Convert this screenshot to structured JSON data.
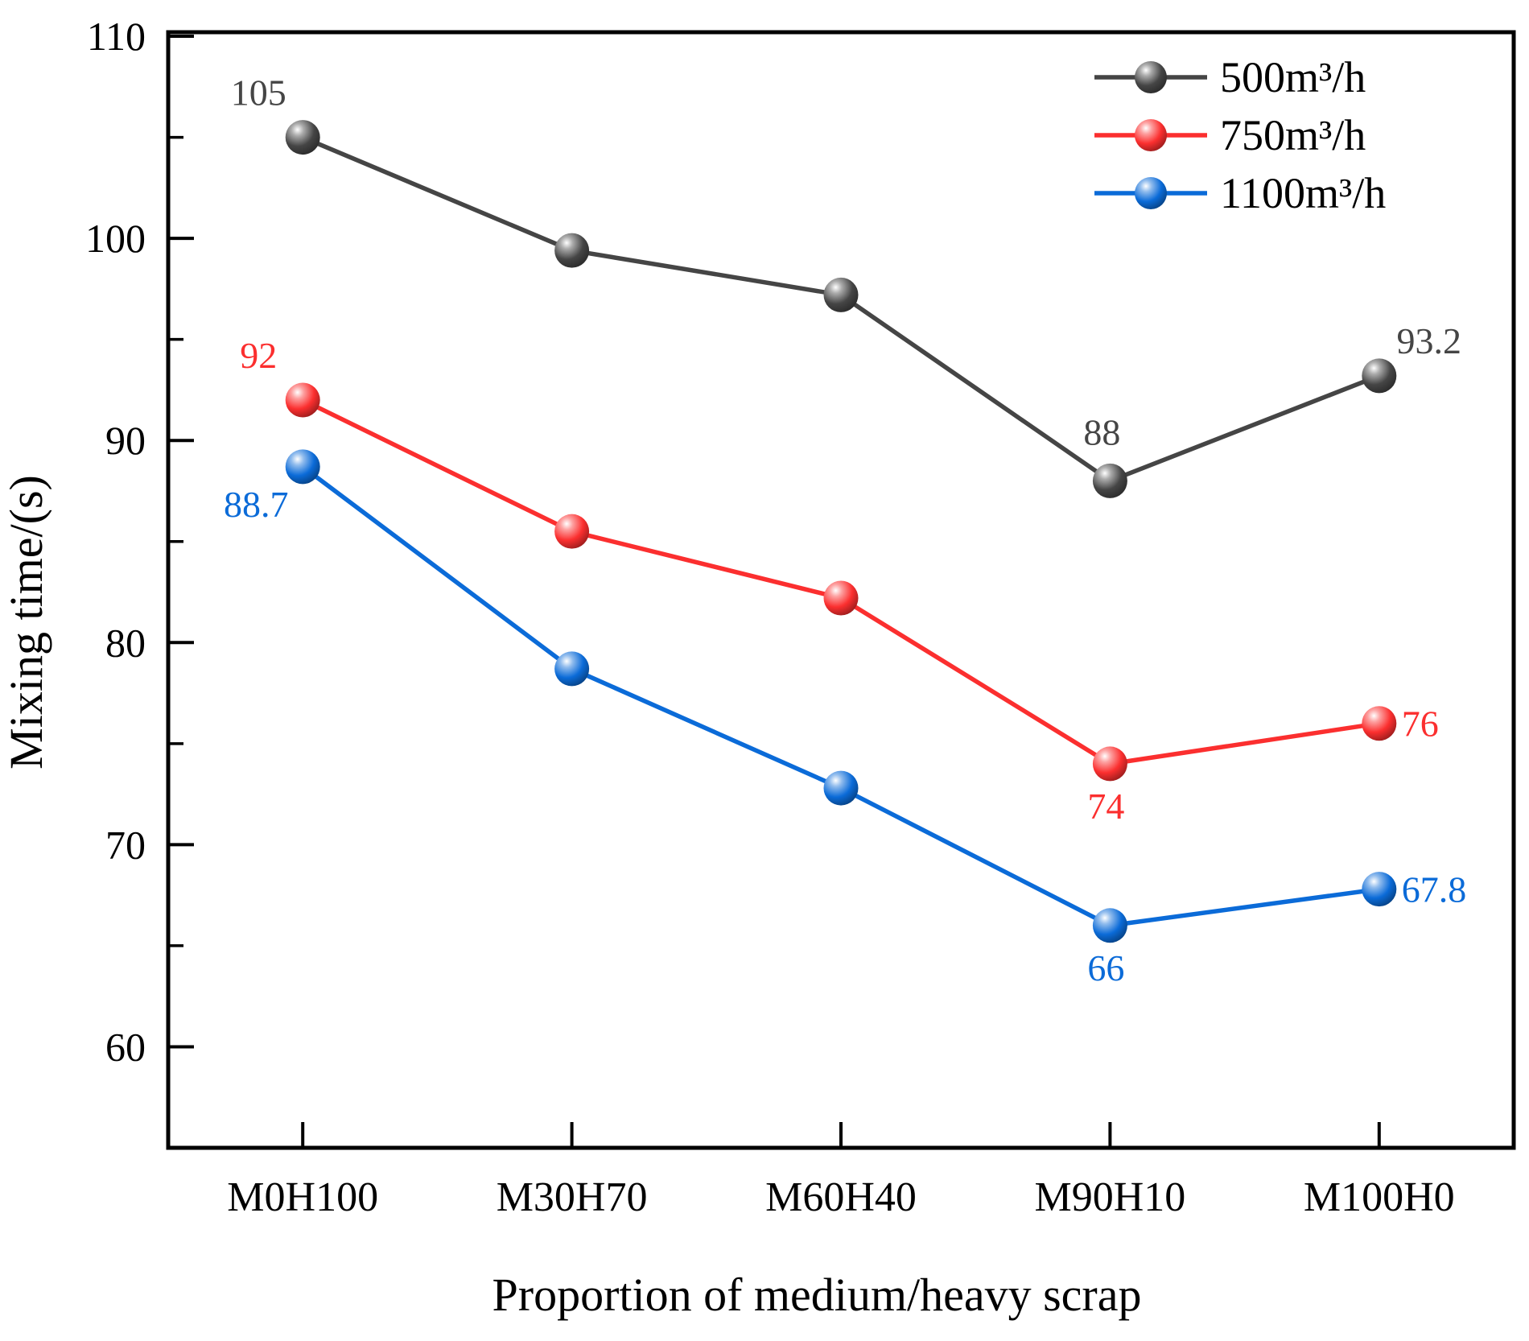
{
  "chart_data": {
    "type": "line",
    "title": "",
    "xlabel": "Proportion of medium/heavy scrap",
    "ylabel": "Mixing time/(s)",
    "categories": [
      "M0H100",
      "M30H70",
      "M60H40",
      "M90H10",
      "M100H0"
    ],
    "ylim": [
      55,
      110.2
    ],
    "yticks_major": [
      60,
      70,
      80,
      90,
      100,
      110
    ],
    "yticks_minor": [
      65,
      75,
      85,
      95,
      105
    ],
    "grid": false,
    "legend_position": "top-right-inside",
    "axis_color": "#000000",
    "series": [
      {
        "name": "500m³/h",
        "color": "#454545",
        "values": [
          105,
          99.4,
          97.2,
          88,
          93.2
        ],
        "point_labels": [
          {
            "index": 0,
            "text": "105",
            "position": "above-left"
          },
          {
            "index": 3,
            "text": "88",
            "position": "above"
          },
          {
            "index": 4,
            "text": "93.2",
            "position": "above-right"
          }
        ]
      },
      {
        "name": "750m³/h",
        "color": "#fb2f2f",
        "values": [
          92,
          85.5,
          82.2,
          74,
          76
        ],
        "point_labels": [
          {
            "index": 0,
            "text": "92",
            "position": "above-left"
          },
          {
            "index": 3,
            "text": "74",
            "position": "below"
          },
          {
            "index": 4,
            "text": "76",
            "position": "right"
          }
        ]
      },
      {
        "name": "1100m³/h",
        "color": "#0b6bd8",
        "values": [
          88.7,
          78.7,
          72.8,
          66,
          67.8
        ],
        "point_labels": [
          {
            "index": 0,
            "text": "88.7",
            "position": "below-left"
          },
          {
            "index": 3,
            "text": "66",
            "position": "below"
          },
          {
            "index": 4,
            "text": "67.8",
            "position": "right"
          }
        ]
      }
    ]
  }
}
